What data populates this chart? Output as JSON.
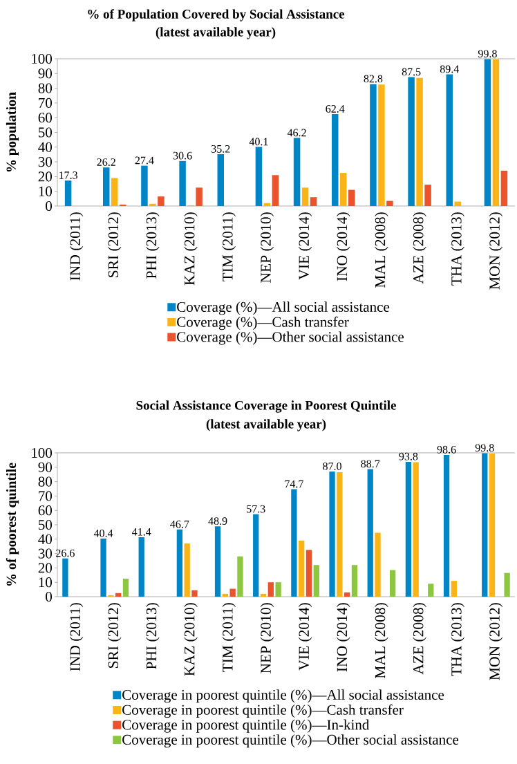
{
  "chart_data": [
    {
      "type": "bar",
      "title": "% of Population Covered by Social Assistance",
      "subtitle": "(latest available year)",
      "ylabel": "% population",
      "categories": [
        "IND (2011)",
        "SRI (2012)",
        "PHI (2013)",
        "KAZ (2010)",
        "TIM (2011)",
        "NEP (2010)",
        "VIE (2014)",
        "INO (2014)",
        "MAL (2008)",
        "AZE (2008)",
        "THA (2013)",
        "MON (2012)"
      ],
      "series": [
        {
          "name": "Coverage (%)—All social assistance",
          "color": "#0086c6",
          "values": [
            17.3,
            26.2,
            27.4,
            30.6,
            35.2,
            40.1,
            46.2,
            62.4,
            82.8,
            87.5,
            89.4,
            99.8
          ],
          "value_labels": [
            "17.3",
            "26.2",
            "27.4",
            "30.6",
            "35.2",
            "40.1",
            "46.2",
            "62.4",
            "82.8",
            "87.5",
            "89.4",
            "99.8"
          ]
        },
        {
          "name": "Coverage (%)—Cash transfer",
          "color": "#fbb416",
          "values": [
            null,
            19,
            1.5,
            0.5,
            null,
            2,
            12.5,
            22.5,
            82.5,
            87,
            3,
            99.5
          ]
        },
        {
          "name": "Coverage (%)—Other social assistance",
          "color": "#ea532b",
          "values": [
            null,
            1,
            6.5,
            12.5,
            null,
            21,
            6,
            11,
            3.5,
            14.5,
            null,
            24
          ]
        }
      ],
      "ylim": [
        0,
        100
      ],
      "yticks": [
        0,
        10,
        20,
        30,
        40,
        50,
        60,
        70,
        80,
        90,
        100
      ],
      "legend": "bottom"
    },
    {
      "type": "bar",
      "title": "Social Assistance Coverage in Poorest Quintile",
      "subtitle": "(latest available year)",
      "ylabel": "% of poorest quintile",
      "categories": [
        "IND (2011)",
        "SRI (2012)",
        "PHI (2013)",
        "KAZ (2010)",
        "TIM (2011)",
        "NEP (2010)",
        "VIE (2014)",
        "INO (2014)",
        "MAL (2008)",
        "AZE (2008)",
        "THA (2013)",
        "MON (2012)"
      ],
      "series": [
        {
          "name": "Coverage in poorest quintile (%)—All social assistance",
          "color": "#0086c6",
          "values": [
            26.6,
            40.4,
            41.4,
            46.7,
            48.9,
            57.3,
            74.7,
            87.0,
            88.7,
            93.8,
            98.6,
            99.8
          ],
          "value_labels": [
            "26.6",
            "40.4",
            "41.4",
            "46.7",
            "48.9",
            "57.3",
            "74.7",
            "87.0",
            "88.7",
            "93.8",
            "98.6",
            "99.8"
          ]
        },
        {
          "name": "Coverage in poorest quintile (%)—Cash transfer",
          "color": "#fbb416",
          "values": [
            null,
            1,
            null,
            37,
            2,
            2,
            39,
            86.5,
            44.5,
            93.5,
            11,
            99.5
          ]
        },
        {
          "name": "Coverage in poorest quintile (%)—In-kind",
          "color": "#ea532b",
          "values": [
            null,
            2.5,
            null,
            4.5,
            5.5,
            10,
            32.5,
            3,
            null,
            null,
            null,
            null
          ]
        },
        {
          "name": "Coverage in poorest quintile (%)—Other social assistance",
          "color": "#8dc63f",
          "values": [
            null,
            12.5,
            null,
            null,
            28,
            10,
            22,
            22,
            18.5,
            9,
            null,
            16.5
          ]
        }
      ],
      "ylim": [
        0,
        100
      ],
      "yticks": [
        0,
        10,
        20,
        30,
        40,
        50,
        60,
        70,
        80,
        90,
        100
      ],
      "legend": "bottom"
    }
  ]
}
